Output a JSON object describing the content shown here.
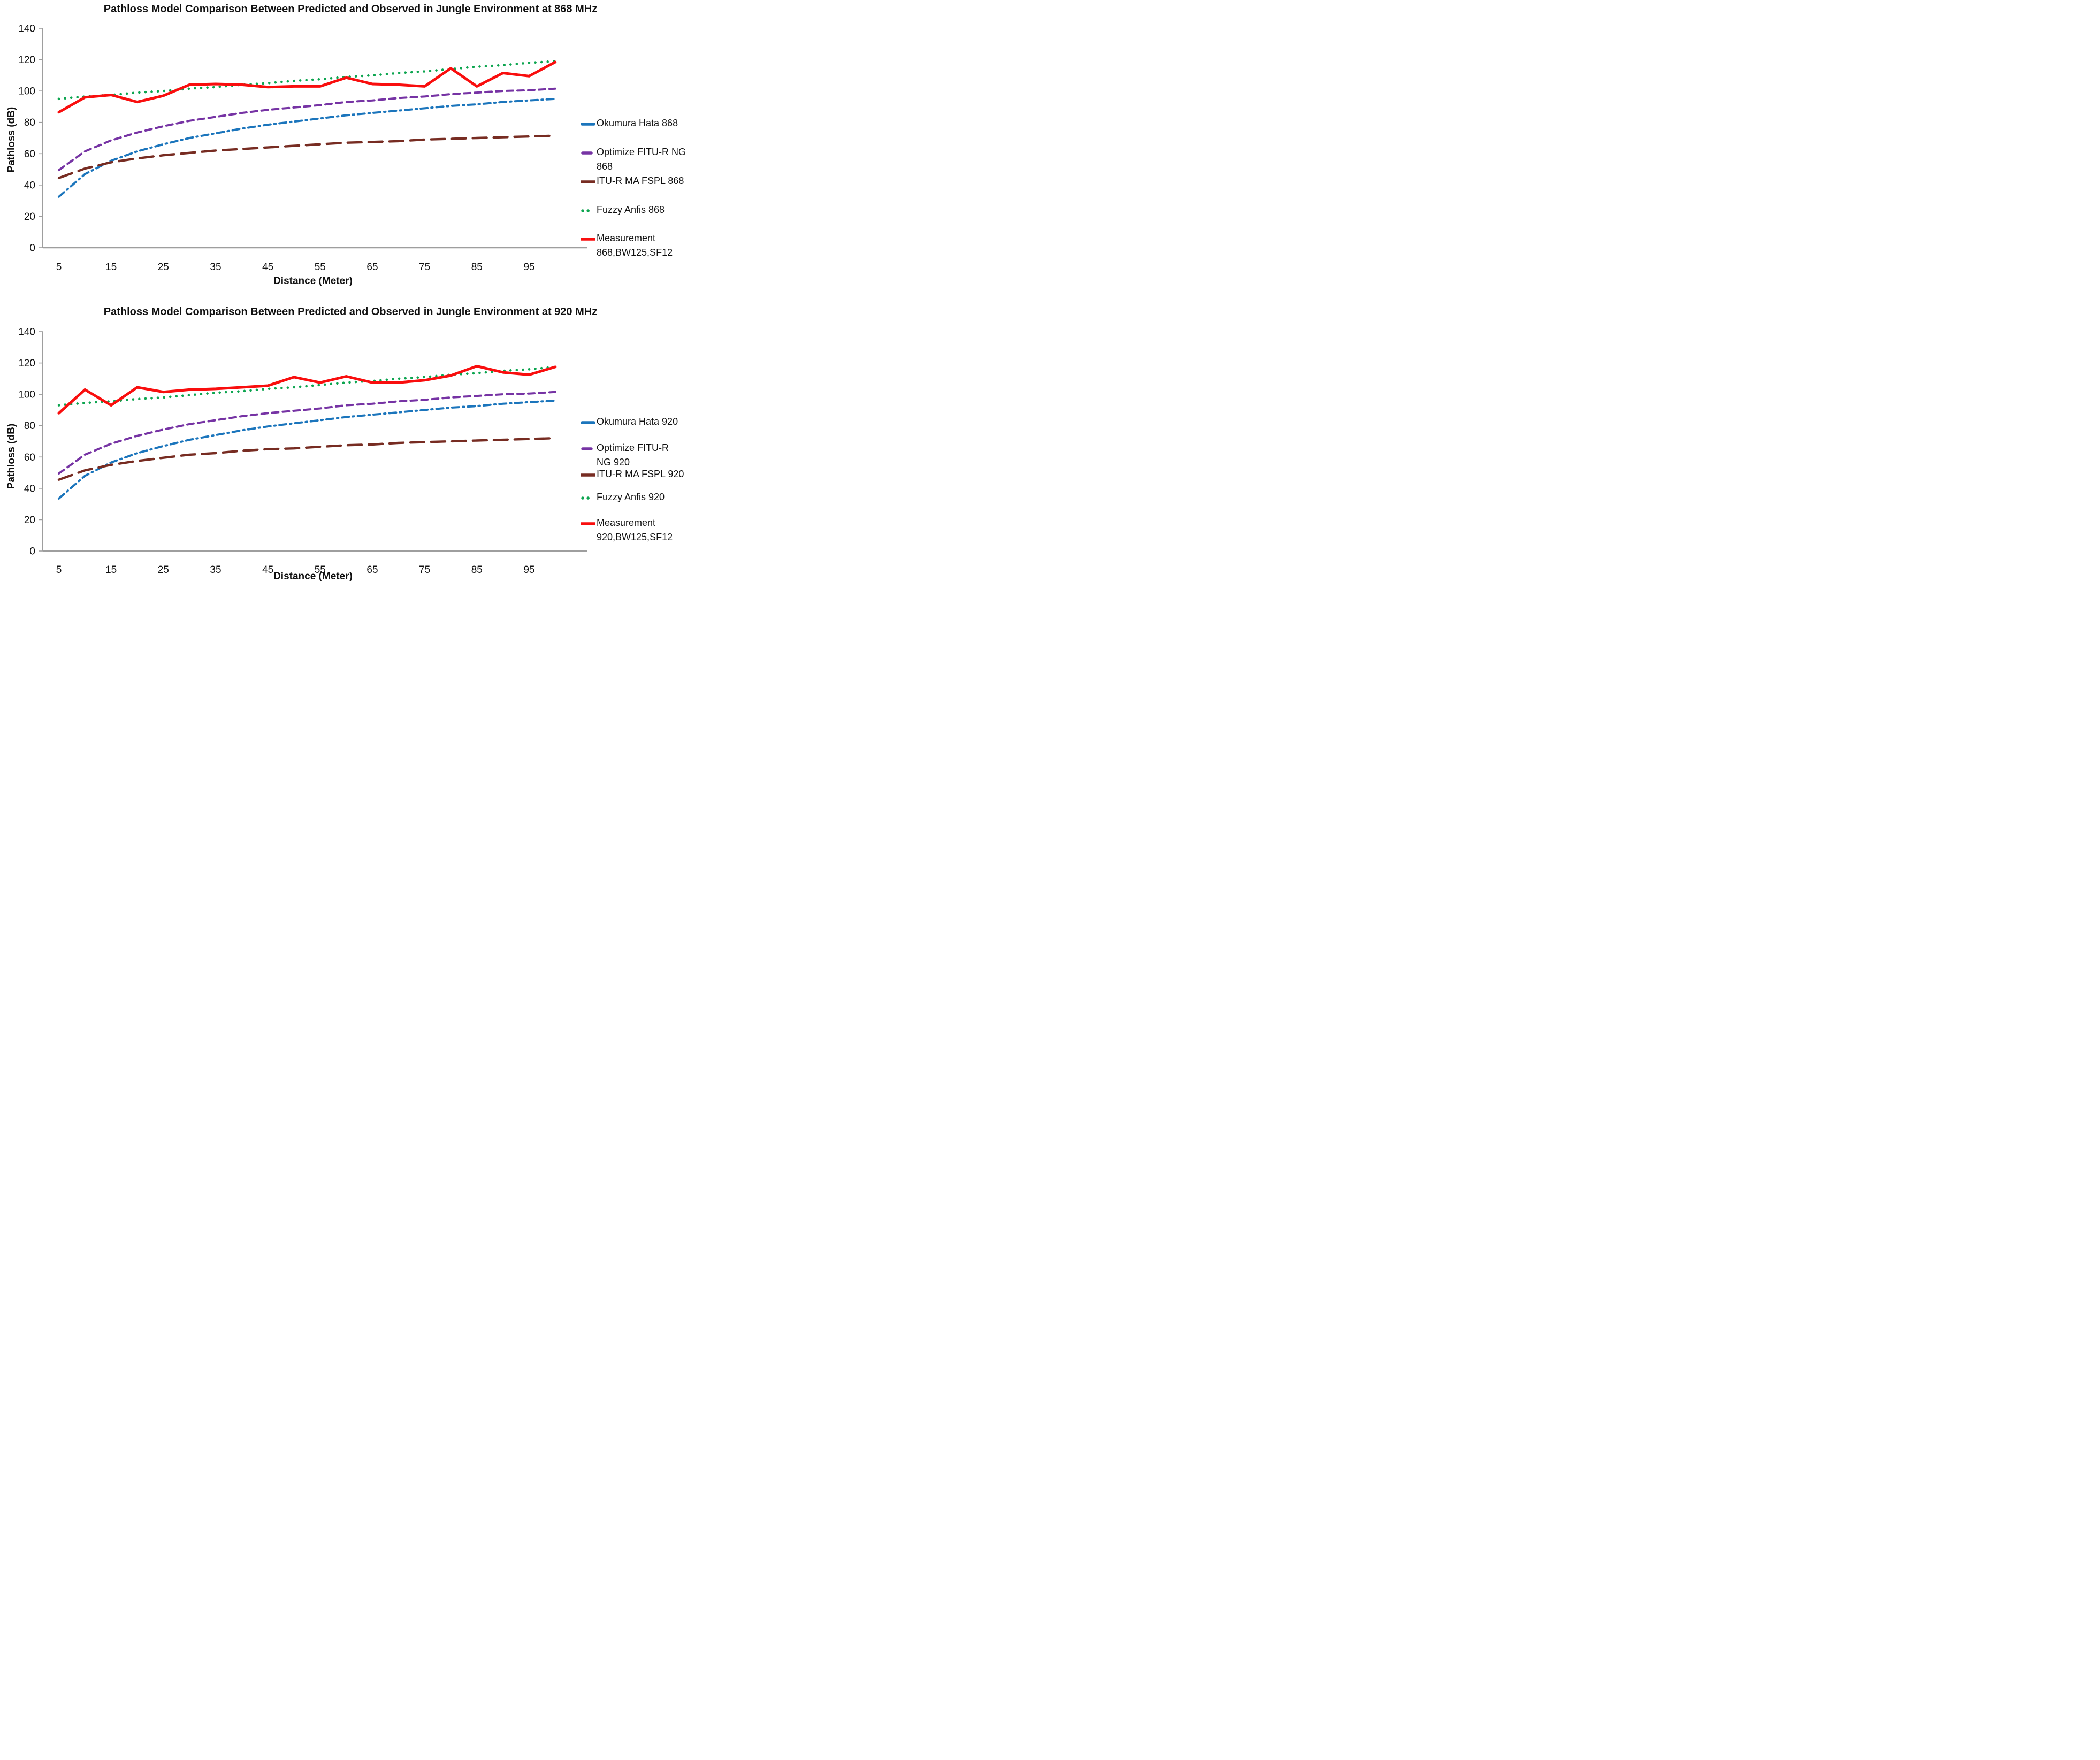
{
  "figure_colors": {
    "okumura_blue": "#1B75BC",
    "optimize_purple": "#7633A4",
    "itur_maroon": "#772C22",
    "fuzzy_green": "#0DA550",
    "measurement_red": "#F90E0E",
    "axis_gray": "#9E9E9E",
    "background": "#FFFFFF"
  },
  "chart_data": [
    {
      "type": "line",
      "title": "Pathloss Model Comparison Between Predicted and Observed in Jungle Environment at 868 MHz",
      "xlabel": "Distance (Meter)",
      "ylabel": "Pathloss (dB)",
      "x": [
        5,
        10,
        15,
        20,
        25,
        30,
        35,
        40,
        45,
        50,
        55,
        60,
        65,
        70,
        75,
        80,
        85,
        90,
        95,
        100
      ],
      "x_tick_labels": [
        "5",
        "15",
        "25",
        "35",
        "45",
        "55",
        "65",
        "75",
        "85",
        "95"
      ],
      "x_tick_values": [
        5,
        15,
        25,
        35,
        45,
        55,
        65,
        75,
        85,
        95
      ],
      "y_ticks": [
        0,
        20,
        40,
        60,
        80,
        100,
        120,
        140
      ],
      "ylim": [
        0,
        140
      ],
      "grid": false,
      "legend_position": "right",
      "series": [
        {
          "key": "okumura-hata-868",
          "name": "Okumura Hata 868",
          "legend_lines": [
            "Okumura Hata 868"
          ],
          "color": "#1B75BC",
          "line_style": "dash-dot",
          "values": [
            32.5,
            47,
            55.5,
            61.5,
            66,
            70,
            73,
            76,
            78.5,
            80.5,
            82.5,
            84.5,
            86,
            87.5,
            89,
            90.5,
            91.5,
            93,
            94,
            95
          ]
        },
        {
          "key": "optimize-fitu-r-ng-868",
          "name": "Optimize FITU-R NG 868",
          "legend_lines": [
            "Optimize FITU-R NG",
            "868"
          ],
          "color": "#7633A4",
          "line_style": "dashed",
          "values": [
            49.5,
            61.5,
            68.5,
            73.5,
            77.5,
            81,
            83.5,
            86,
            88,
            89.5,
            91,
            93,
            94,
            95.5,
            96.5,
            98,
            99,
            100,
            100.5,
            101.5
          ]
        },
        {
          "key": "itu-r-ma-fspl-868",
          "name": "ITU-R MA FSPL 868",
          "legend_lines": [
            "ITU-R MA FSPL 868"
          ],
          "color": "#772C22",
          "line_style": "long-dash",
          "values": [
            44.5,
            50.5,
            54.5,
            57,
            59,
            60.5,
            62,
            63,
            64,
            65,
            66,
            67,
            67.5,
            68,
            69,
            69.5,
            70,
            70.5,
            71,
            71.5
          ]
        },
        {
          "key": "fuzzy-anfis-868",
          "name": "Fuzzy Anfis 868",
          "legend_lines": [
            "Fuzzy Anfis 868"
          ],
          "color": "#0DA550",
          "line_style": "dotted",
          "values": [
            95,
            96.5,
            97.5,
            99,
            100,
            101.5,
            102.5,
            104,
            105,
            106.5,
            107.5,
            109,
            110,
            111.5,
            112.5,
            114,
            115.5,
            116.5,
            118,
            119
          ]
        },
        {
          "key": "measurement-868",
          "name": "Measurement 868,BW125,SF12",
          "legend_lines": [
            "Measurement",
            "868,BW125,SF12"
          ],
          "color": "#F90E0E",
          "line_style": "solid",
          "values": [
            86.5,
            96,
            97.5,
            93,
            97,
            104,
            104.5,
            104,
            102.5,
            103,
            103,
            108.5,
            104.5,
            104,
            103,
            114.5,
            103,
            111.5,
            109.5,
            118.5
          ]
        }
      ]
    },
    {
      "type": "line",
      "title": "Pathloss Model Comparison Between Predicted and Observed in Jungle Environment at 920 MHz",
      "xlabel": "Distance (Meter)",
      "ylabel": "Pathloss (dB)",
      "x": [
        5,
        10,
        15,
        20,
        25,
        30,
        35,
        40,
        45,
        50,
        55,
        60,
        65,
        70,
        75,
        80,
        85,
        90,
        95,
        100
      ],
      "x_tick_labels": [
        "5",
        "15",
        "25",
        "35",
        "45",
        "55",
        "65",
        "75",
        "85",
        "95"
      ],
      "x_tick_values": [
        5,
        15,
        25,
        35,
        45,
        55,
        65,
        75,
        85,
        95
      ],
      "y_ticks": [
        0,
        20,
        40,
        60,
        80,
        100,
        120,
        140
      ],
      "ylim": [
        0,
        140
      ],
      "grid": false,
      "legend_position": "right",
      "series": [
        {
          "key": "okumura-hata-920",
          "name": "Okumura Hata 920",
          "legend_lines": [
            "Okumura Hata 920"
          ],
          "color": "#1B75BC",
          "line_style": "dash-dot",
          "values": [
            33.5,
            48,
            56.5,
            62.5,
            67,
            71,
            74,
            77,
            79.5,
            81.5,
            83.5,
            85.5,
            87,
            88.5,
            90,
            91.5,
            92.5,
            94,
            95,
            96
          ]
        },
        {
          "key": "optimize-fitu-r-ng-920",
          "name": "Optimize FITU-R NG 920",
          "legend_lines": [
            "Optimize FITU-R",
            "NG 920"
          ],
          "color": "#7633A4",
          "line_style": "dashed",
          "values": [
            49.5,
            61.5,
            68.5,
            73.5,
            77.5,
            81,
            83.5,
            86,
            88,
            89.5,
            91,
            93,
            94,
            95.5,
            96.5,
            98,
            99,
            100,
            100.5,
            101.5
          ]
        },
        {
          "key": "itu-r-ma-fspl-920",
          "name": "ITU-R MA FSPL 920",
          "legend_lines": [
            "ITU-R MA FSPL 920"
          ],
          "color": "#772C22",
          "line_style": "long-dash",
          "values": [
            45.5,
            51.5,
            55,
            57.5,
            59.5,
            61.5,
            62.5,
            64,
            65,
            65.5,
            66.5,
            67.5,
            68,
            69,
            69.5,
            70,
            70.5,
            71,
            71.5,
            72
          ]
        },
        {
          "key": "fuzzy-anfis-920",
          "name": "Fuzzy Anfis 920",
          "legend_lines": [
            "Fuzzy Anfis 920"
          ],
          "color": "#0DA550",
          "line_style": "dotted",
          "values": [
            93,
            94.5,
            95.5,
            97,
            98,
            99.5,
            101,
            102,
            103.5,
            104.5,
            106,
            107.5,
            108.5,
            110,
            111,
            112.5,
            113.5,
            115,
            116,
            117.5
          ]
        },
        {
          "key": "measurement-920",
          "name": "Measurement 920,BW125,SF12",
          "legend_lines": [
            "Measurement",
            "920,BW125,SF12"
          ],
          "color": "#F90E0E",
          "line_style": "solid",
          "values": [
            88,
            103,
            93,
            104.5,
            101.5,
            103,
            103.5,
            104.5,
            105.5,
            111,
            107.5,
            111.5,
            107.5,
            107.5,
            109,
            112,
            118,
            114,
            112.5,
            117.5
          ]
        }
      ]
    }
  ]
}
